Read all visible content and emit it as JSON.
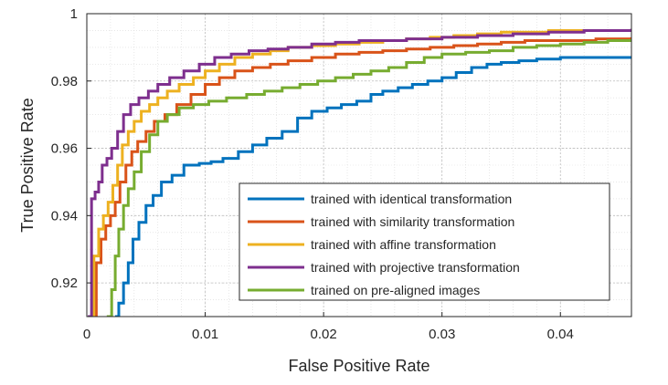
{
  "chart_data": {
    "type": "line",
    "title": "",
    "xlabel": "False Positive Rate",
    "ylabel": "True Positive Rate",
    "xlim": [
      0,
      0.046
    ],
    "ylim": [
      0.91,
      1.0
    ],
    "xticks": [
      0,
      0.01,
      0.02,
      0.03,
      0.04
    ],
    "xtick_labels": [
      "0",
      "0.01",
      "0.02",
      "0.03",
      "0.04"
    ],
    "yticks": [
      0.92,
      0.94,
      0.96,
      0.98,
      1.0
    ],
    "ytick_labels": [
      "0.92",
      "0.94",
      "0.96",
      "0.98",
      "1"
    ],
    "grid": "major and minor",
    "legend_position": "bottom-right",
    "series": [
      {
        "name": "trained with identical transformation",
        "color": "#0072BD",
        "x": [
          0.0025,
          0.0027,
          0.0031,
          0.0035,
          0.0039,
          0.0044,
          0.005,
          0.0056,
          0.0063,
          0.0072,
          0.0082,
          0.0095,
          0.0105,
          0.0115,
          0.0128,
          0.014,
          0.0152,
          0.0165,
          0.0178,
          0.019,
          0.0203,
          0.0215,
          0.0228,
          0.024,
          0.025,
          0.0263,
          0.0275,
          0.0288,
          0.03,
          0.0312,
          0.0325,
          0.0338,
          0.035,
          0.0365,
          0.038,
          0.04,
          0.042,
          0.044,
          0.046
        ],
        "y": [
          0.91,
          0.914,
          0.92,
          0.926,
          0.933,
          0.938,
          0.943,
          0.946,
          0.95,
          0.952,
          0.955,
          0.9555,
          0.956,
          0.957,
          0.959,
          0.961,
          0.963,
          0.965,
          0.969,
          0.971,
          0.972,
          0.973,
          0.974,
          0.976,
          0.977,
          0.978,
          0.979,
          0.98,
          0.981,
          0.9825,
          0.984,
          0.985,
          0.9855,
          0.986,
          0.9865,
          0.987,
          0.987,
          0.987,
          0.987
        ]
      },
      {
        "name": "trained with similarity transformation",
        "color": "#D95319",
        "x": [
          0.0005,
          0.0008,
          0.0012,
          0.0016,
          0.002,
          0.0024,
          0.0028,
          0.0033,
          0.0038,
          0.0043,
          0.005,
          0.0057,
          0.0066,
          0.0076,
          0.0088,
          0.01,
          0.0112,
          0.0125,
          0.014,
          0.0155,
          0.017,
          0.019,
          0.021,
          0.023,
          0.025,
          0.027,
          0.029,
          0.031,
          0.033,
          0.035,
          0.037,
          0.04,
          0.043,
          0.046
        ],
        "y": [
          0.91,
          0.926,
          0.933,
          0.937,
          0.94,
          0.944,
          0.95,
          0.955,
          0.959,
          0.962,
          0.965,
          0.968,
          0.97,
          0.973,
          0.976,
          0.979,
          0.981,
          0.983,
          0.984,
          0.985,
          0.986,
          0.987,
          0.988,
          0.9885,
          0.989,
          0.9895,
          0.99,
          0.9905,
          0.991,
          0.9915,
          0.992,
          0.992,
          0.9925,
          0.993
        ]
      },
      {
        "name": "trained with affine transformation",
        "color": "#EDB120",
        "x": [
          0.0003,
          0.0006,
          0.001,
          0.0014,
          0.0018,
          0.0022,
          0.0026,
          0.003,
          0.0035,
          0.004,
          0.0046,
          0.0053,
          0.006,
          0.0068,
          0.0078,
          0.009,
          0.01,
          0.0112,
          0.0125,
          0.014,
          0.0155,
          0.017,
          0.019,
          0.021,
          0.023,
          0.025,
          0.027,
          0.029,
          0.031,
          0.033,
          0.035,
          0.037,
          0.039,
          0.041,
          0.043,
          0.046
        ],
        "y": [
          0.91,
          0.928,
          0.936,
          0.94,
          0.944,
          0.949,
          0.955,
          0.961,
          0.965,
          0.968,
          0.971,
          0.973,
          0.975,
          0.977,
          0.979,
          0.981,
          0.983,
          0.985,
          0.987,
          0.988,
          0.989,
          0.99,
          0.9905,
          0.991,
          0.9915,
          0.992,
          0.9925,
          0.993,
          0.9935,
          0.994,
          0.9945,
          0.9945,
          0.995,
          0.995,
          0.995,
          0.995
        ]
      },
      {
        "name": "trained with projective transformation",
        "color": "#7E2F8E",
        "x": [
          0.0002,
          0.0004,
          0.0007,
          0.001,
          0.0013,
          0.0017,
          0.0021,
          0.0026,
          0.0031,
          0.0037,
          0.0044,
          0.0052,
          0.006,
          0.007,
          0.0082,
          0.0095,
          0.0108,
          0.0122,
          0.0137,
          0.0153,
          0.017,
          0.019,
          0.021,
          0.023,
          0.025,
          0.027,
          0.03,
          0.033,
          0.036,
          0.039,
          0.042,
          0.044,
          0.046
        ],
        "y": [
          0.91,
          0.945,
          0.947,
          0.95,
          0.955,
          0.957,
          0.96,
          0.965,
          0.97,
          0.973,
          0.975,
          0.977,
          0.979,
          0.981,
          0.983,
          0.985,
          0.987,
          0.988,
          0.989,
          0.9895,
          0.99,
          0.991,
          0.9915,
          0.992,
          0.992,
          0.9925,
          0.993,
          0.9935,
          0.994,
          0.9945,
          0.995,
          0.995,
          0.9955
        ]
      },
      {
        "name": "trained on pre-aligned images",
        "color": "#77AC30",
        "x": [
          0.0018,
          0.0021,
          0.0024,
          0.0027,
          0.0031,
          0.0035,
          0.004,
          0.0046,
          0.0053,
          0.006,
          0.0068,
          0.0078,
          0.009,
          0.0103,
          0.0118,
          0.0135,
          0.015,
          0.0165,
          0.018,
          0.0195,
          0.021,
          0.0225,
          0.024,
          0.0255,
          0.027,
          0.0285,
          0.03,
          0.032,
          0.034,
          0.036,
          0.038,
          0.04,
          0.042,
          0.044,
          0.046
        ],
        "y": [
          0.91,
          0.918,
          0.928,
          0.936,
          0.943,
          0.948,
          0.953,
          0.959,
          0.964,
          0.968,
          0.97,
          0.972,
          0.973,
          0.974,
          0.975,
          0.976,
          0.977,
          0.978,
          0.979,
          0.98,
          0.981,
          0.982,
          0.983,
          0.984,
          0.9855,
          0.987,
          0.988,
          0.9885,
          0.989,
          0.99,
          0.9905,
          0.991,
          0.9915,
          0.992,
          0.9925
        ]
      }
    ]
  }
}
